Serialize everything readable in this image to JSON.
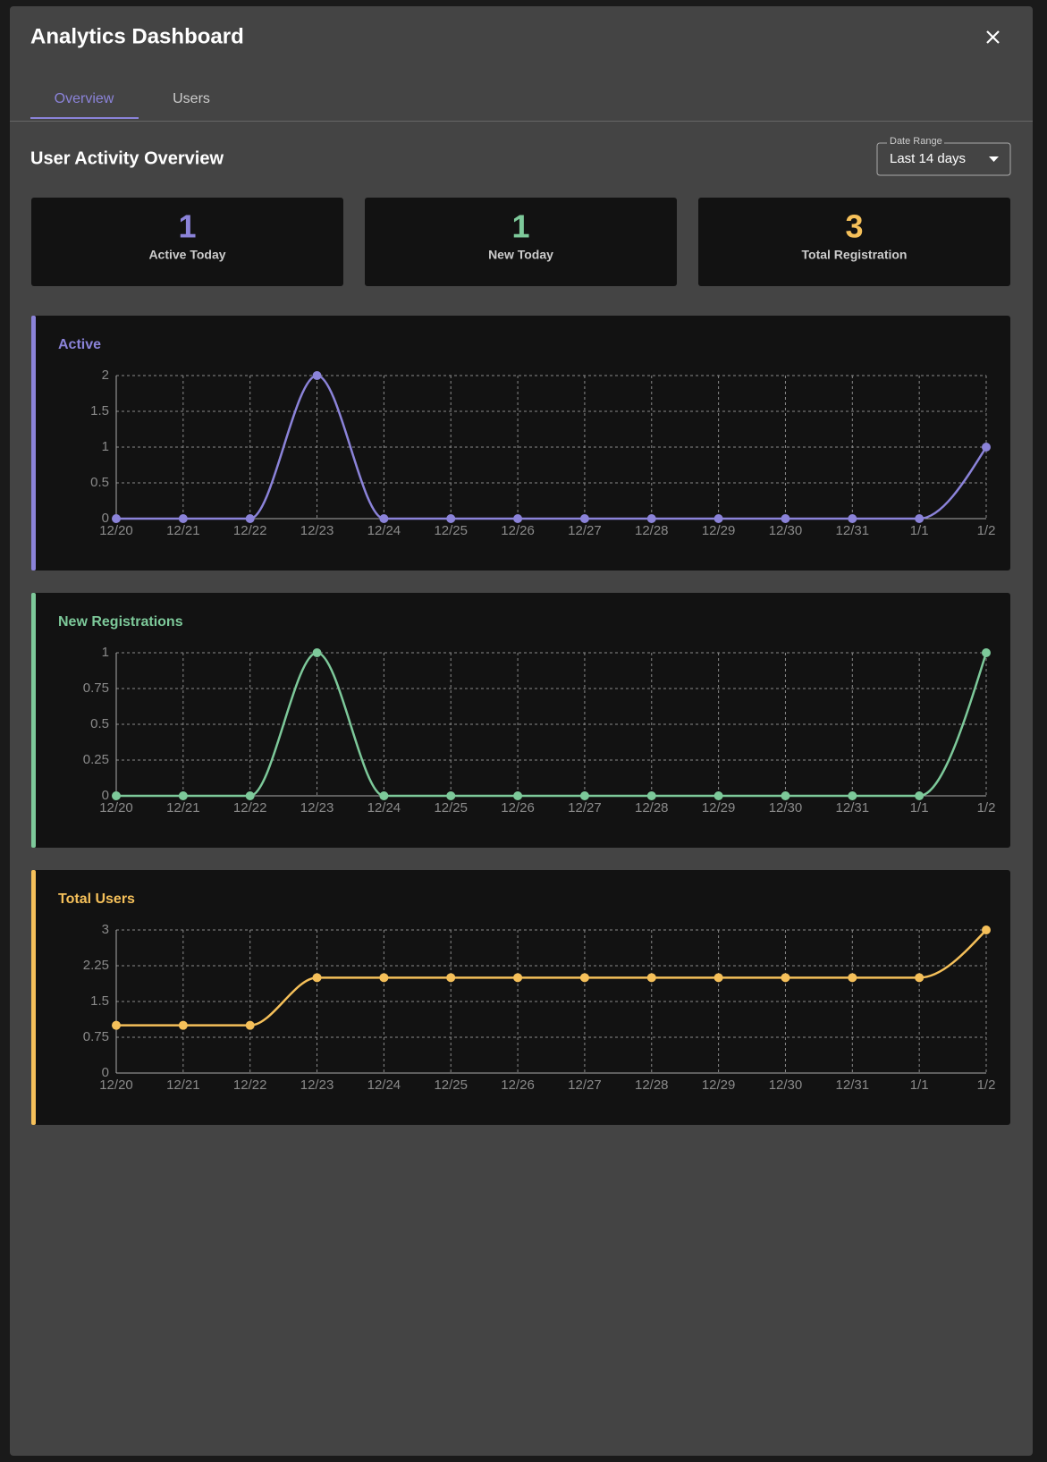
{
  "header": {
    "title": "Analytics Dashboard"
  },
  "tabs": [
    "Overview",
    "Users"
  ],
  "section_title": "User Activity Overview",
  "date_range": {
    "label": "Date Range",
    "value": "Last 14 days"
  },
  "stats": [
    {
      "value": 1,
      "label": "Active Today",
      "color": "#8b83d9"
    },
    {
      "value": 1,
      "label": "New Today",
      "color": "#7dc99a"
    },
    {
      "value": 3,
      "label": "Total Registration",
      "color": "#f5c05a"
    }
  ],
  "chart_data": [
    {
      "type": "line",
      "title": "Active",
      "categories": [
        "12/20",
        "12/21",
        "12/22",
        "12/23",
        "12/24",
        "12/25",
        "12/26",
        "12/27",
        "12/28",
        "12/29",
        "12/30",
        "12/31",
        "1/1",
        "1/2"
      ],
      "values": [
        0,
        0,
        0,
        2,
        0,
        0,
        0,
        0,
        0,
        0,
        0,
        0,
        0,
        1
      ],
      "color": "#8b83d9",
      "ylim": [
        0,
        2
      ],
      "yticks": [
        0,
        0.5,
        1,
        1.5,
        2
      ],
      "grid": true
    },
    {
      "type": "line",
      "title": "New Registrations",
      "categories": [
        "12/20",
        "12/21",
        "12/22",
        "12/23",
        "12/24",
        "12/25",
        "12/26",
        "12/27",
        "12/28",
        "12/29",
        "12/30",
        "12/31",
        "1/1",
        "1/2"
      ],
      "values": [
        0,
        0,
        0,
        1,
        0,
        0,
        0,
        0,
        0,
        0,
        0,
        0,
        0,
        1
      ],
      "color": "#7dc99a",
      "ylim": [
        0,
        1
      ],
      "yticks": [
        0,
        0.25,
        0.5,
        0.75,
        1
      ],
      "grid": true
    },
    {
      "type": "line",
      "title": "Total Users",
      "categories": [
        "12/20",
        "12/21",
        "12/22",
        "12/23",
        "12/24",
        "12/25",
        "12/26",
        "12/27",
        "12/28",
        "12/29",
        "12/30",
        "12/31",
        "1/1",
        "1/2"
      ],
      "values": [
        1,
        1,
        1,
        2,
        2,
        2,
        2,
        2,
        2,
        2,
        2,
        2,
        2,
        3
      ],
      "color": "#f5c05a",
      "ylim": [
        0,
        3
      ],
      "yticks": [
        0,
        0.75,
        1.5,
        2.25,
        3
      ],
      "grid": true
    }
  ]
}
